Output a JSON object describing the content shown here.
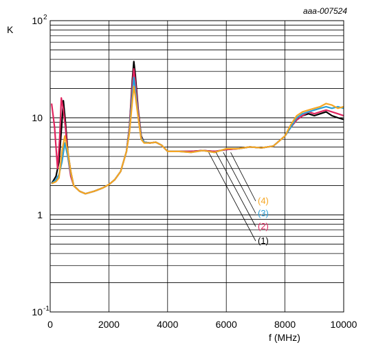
{
  "chart_data": {
    "type": "line",
    "reference": "aaa-007524",
    "xlabel": "f (MHz)",
    "ylabel": "K",
    "xlim": [
      0,
      10000
    ],
    "ylim": [
      0.1,
      100
    ],
    "yscale": "log",
    "grid": true,
    "x_ticks": [
      "0",
      "2000",
      "4000",
      "6000",
      "8000",
      "10000"
    ],
    "y_ticks": [
      {
        "base": "10",
        "exp": "2",
        "value": 100
      },
      {
        "base": "10",
        "exp": "",
        "value": 10
      },
      {
        "base": "1",
        "exp": "",
        "value": 1
      },
      {
        "base": "10",
        "exp": "-1",
        "value": 0.1
      }
    ],
    "legend_placement": "center-right, callouts from curves",
    "series": [
      {
        "name": "(1)",
        "color": "#000000",
        "x": [
          50,
          200,
          300,
          400,
          450,
          520,
          600,
          700,
          800,
          1000,
          1200,
          1500,
          1800,
          2000,
          2200,
          2400,
          2600,
          2700,
          2800,
          2850,
          2900,
          3000,
          3100,
          3200,
          3400,
          3600,
          3800,
          4000,
          4400,
          4800,
          5200,
          5600,
          6000,
          6400,
          6800,
          7200,
          7600,
          8000,
          8200,
          8400,
          8600,
          8800,
          9000,
          9200,
          9400,
          9600,
          9800,
          10000
        ],
        "y": [
          2.1,
          2.5,
          3.5,
          9.0,
          15.0,
          9.0,
          4.5,
          2.8,
          2.0,
          1.75,
          1.65,
          1.75,
          1.9,
          2.05,
          2.3,
          2.8,
          4.5,
          8.0,
          25.0,
          38.0,
          28.0,
          12.0,
          6.5,
          5.6,
          5.5,
          5.6,
          5.2,
          4.5,
          4.5,
          4.5,
          4.6,
          4.5,
          4.7,
          4.8,
          5.0,
          4.9,
          5.1,
          6.5,
          8.0,
          9.5,
          10.5,
          11.0,
          10.5,
          11.0,
          11.5,
          10.5,
          10.0,
          9.6
        ]
      },
      {
        "name": "(2)",
        "color": "#e0245e",
        "x": [
          50,
          150,
          250,
          320,
          380,
          450,
          520,
          600,
          700,
          800,
          1000,
          1200,
          1500,
          1800,
          2000,
          2200,
          2400,
          2600,
          2700,
          2800,
          2850,
          2900,
          3000,
          3100,
          3200,
          3400,
          3600,
          3800,
          4000,
          4400,
          4800,
          5200,
          5600,
          6000,
          6400,
          6800,
          7200,
          7600,
          8000,
          8200,
          8400,
          8600,
          8800,
          9000,
          9200,
          9400,
          9600,
          9800,
          10000
        ],
        "y": [
          14.0,
          8.0,
          3.0,
          6.0,
          16.0,
          12.0,
          8.0,
          4.0,
          2.5,
          2.0,
          1.75,
          1.65,
          1.75,
          1.9,
          2.05,
          2.3,
          2.8,
          4.5,
          8.0,
          22.0,
          32.0,
          24.0,
          11.5,
          6.3,
          5.6,
          5.5,
          5.6,
          5.2,
          4.5,
          4.5,
          4.5,
          4.6,
          4.5,
          4.7,
          4.8,
          5.0,
          4.9,
          5.1,
          6.5,
          8.0,
          9.5,
          10.5,
          11.5,
          11.0,
          11.5,
          12.0,
          11.5,
          11.0,
          10.5
        ]
      },
      {
        "name": "(3)",
        "color": "#2a9fd6",
        "x": [
          50,
          200,
          300,
          400,
          500,
          600,
          700,
          800,
          1000,
          1200,
          1500,
          1800,
          2000,
          2200,
          2400,
          2600,
          2700,
          2800,
          2850,
          2900,
          3000,
          3100,
          3200,
          3400,
          3600,
          3800,
          4000,
          4400,
          4800,
          5200,
          5600,
          6000,
          6400,
          6800,
          7200,
          7600,
          8000,
          8200,
          8400,
          8600,
          8800,
          9000,
          9200,
          9400,
          9600,
          9800,
          10000
        ],
        "y": [
          2.1,
          2.3,
          2.6,
          3.5,
          5.5,
          4.0,
          2.7,
          2.0,
          1.75,
          1.65,
          1.75,
          1.9,
          2.05,
          2.3,
          2.8,
          4.5,
          7.5,
          18.0,
          26.0,
          20.0,
          10.5,
          6.2,
          5.6,
          5.5,
          5.6,
          5.2,
          4.5,
          4.5,
          4.4,
          4.6,
          4.4,
          4.8,
          4.8,
          5.0,
          4.9,
          5.1,
          6.5,
          8.0,
          10.0,
          11.0,
          11.5,
          12.0,
          12.5,
          13.0,
          12.5,
          13.0,
          12.5
        ]
      },
      {
        "name": "(4)",
        "color": "#f5a623",
        "x": [
          50,
          200,
          300,
          400,
          500,
          600,
          700,
          800,
          1000,
          1200,
          1500,
          1800,
          2000,
          2200,
          2400,
          2600,
          2700,
          2800,
          2850,
          2900,
          3000,
          3100,
          3200,
          3400,
          3600,
          3800,
          4000,
          4400,
          4800,
          5200,
          5600,
          6000,
          6400,
          6800,
          7200,
          7600,
          8000,
          8200,
          8400,
          8600,
          8800,
          9000,
          9200,
          9400,
          9600,
          9800,
          10000
        ],
        "y": [
          2.1,
          2.2,
          2.4,
          4.5,
          6.5,
          4.5,
          2.8,
          2.0,
          1.75,
          1.65,
          1.75,
          1.9,
          2.05,
          2.3,
          2.8,
          4.5,
          7.0,
          15.0,
          21.0,
          17.0,
          10.0,
          6.0,
          5.5,
          5.5,
          5.6,
          5.2,
          4.5,
          4.5,
          4.4,
          4.6,
          4.4,
          4.8,
          4.8,
          5.0,
          4.9,
          5.1,
          6.5,
          8.5,
          10.5,
          11.5,
          12.0,
          12.5,
          13.0,
          14.0,
          13.5,
          12.5,
          13.0
        ]
      }
    ]
  }
}
